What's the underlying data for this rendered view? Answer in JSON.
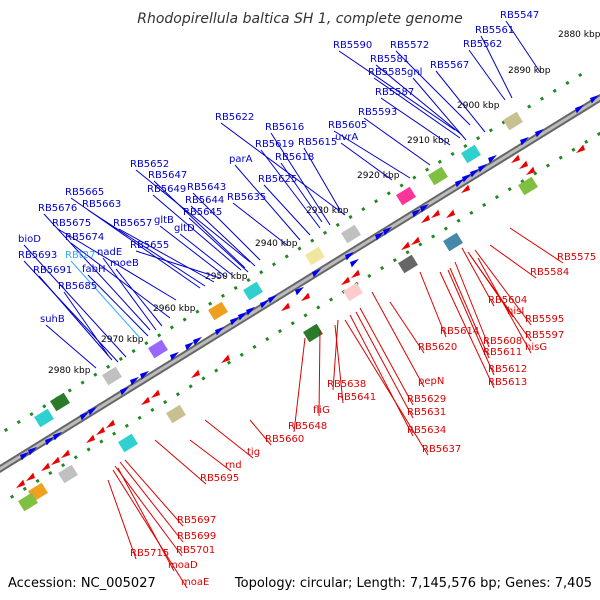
{
  "title": "Rhodopirellula baltica SH 1, complete genome",
  "footer": {
    "accession": "Accession: NC_005027",
    "summary": "Topology: circular; Length: 7,145,576 bp; Genes: 7,405"
  },
  "colors": {
    "forward_label": "#0000cc",
    "reverse_label": "#dd0000",
    "rna_label": "#33aaff",
    "forward_gene": "#0000ee",
    "reverse_gene": "#ee0000",
    "backbone": "#888888",
    "tick_dots": "#228822"
  },
  "ticks": [
    {
      "label": "2880 kbp"
    },
    {
      "label": "2890 kbp"
    },
    {
      "label": "2900 kbp"
    },
    {
      "label": "2910 kbp"
    },
    {
      "label": "2920 kbp"
    },
    {
      "label": "2930 kbp"
    },
    {
      "label": "2940 kbp"
    },
    {
      "label": "2950 kbp"
    },
    {
      "label": "2960 kbp"
    },
    {
      "label": "2970 kbp"
    },
    {
      "label": "2980 kbp"
    }
  ],
  "forward_labels": [
    {
      "text": "RB5547"
    },
    {
      "text": "RB5561"
    },
    {
      "text": "RB5562"
    },
    {
      "text": "RB5572"
    },
    {
      "text": "RB5590"
    },
    {
      "text": "RB5581"
    },
    {
      "text": "RB5567"
    },
    {
      "text": "RB5585"
    },
    {
      "text": "gnl"
    },
    {
      "text": "RB5587"
    },
    {
      "text": "RB5593"
    },
    {
      "text": "RB5605"
    },
    {
      "text": "uvrA"
    },
    {
      "text": "RB5622"
    },
    {
      "text": "RB5616"
    },
    {
      "text": "RB5619"
    },
    {
      "text": "RB5615"
    },
    {
      "text": "parA"
    },
    {
      "text": "RB5618"
    },
    {
      "text": "RB5625"
    },
    {
      "text": "RB5652"
    },
    {
      "text": "RB5647"
    },
    {
      "text": "RB5649"
    },
    {
      "text": "RB5643"
    },
    {
      "text": "RB5644"
    },
    {
      "text": "RB5635"
    },
    {
      "text": "RB5645"
    },
    {
      "text": "RB5665"
    },
    {
      "text": "RB5663"
    },
    {
      "text": "RB5676"
    },
    {
      "text": "RB5675"
    },
    {
      "text": "RB5657"
    },
    {
      "text": "gltB"
    },
    {
      "text": "gltD"
    },
    {
      "text": "bioD"
    },
    {
      "text": "RB5674"
    },
    {
      "text": "RB5655"
    },
    {
      "text": "nadE"
    },
    {
      "text": "RB5693"
    },
    {
      "text": "moeB"
    },
    {
      "text": "RB5691"
    },
    {
      "text": "fabH"
    },
    {
      "text": "RB5685"
    },
    {
      "text": "suhB"
    }
  ],
  "rna_labels": [
    {
      "text": "RBt27"
    }
  ],
  "reverse_labels": [
    {
      "text": "RB5575"
    },
    {
      "text": "RB5584"
    },
    {
      "text": "RB5604"
    },
    {
      "text": "hisI"
    },
    {
      "text": "RB5595"
    },
    {
      "text": "RB5614"
    },
    {
      "text": "RB5597"
    },
    {
      "text": "RB5608"
    },
    {
      "text": "hisG"
    },
    {
      "text": "RB5620"
    },
    {
      "text": "RB5611"
    },
    {
      "text": "RB5612"
    },
    {
      "text": "RB5613"
    },
    {
      "text": "pepN"
    },
    {
      "text": "RB5638"
    },
    {
      "text": "RB5629"
    },
    {
      "text": "RB5641"
    },
    {
      "text": "RB5631"
    },
    {
      "text": "fliG"
    },
    {
      "text": "RB5648"
    },
    {
      "text": "RB5634"
    },
    {
      "text": "RB5660"
    },
    {
      "text": "RB5637"
    },
    {
      "text": "tig"
    },
    {
      "text": "rnd"
    },
    {
      "text": "RB5695"
    },
    {
      "text": "RB5697"
    },
    {
      "text": "RB5699"
    },
    {
      "text": "RB5701"
    },
    {
      "text": "RB5715"
    },
    {
      "text": "moaD"
    },
    {
      "text": "moaE"
    }
  ]
}
